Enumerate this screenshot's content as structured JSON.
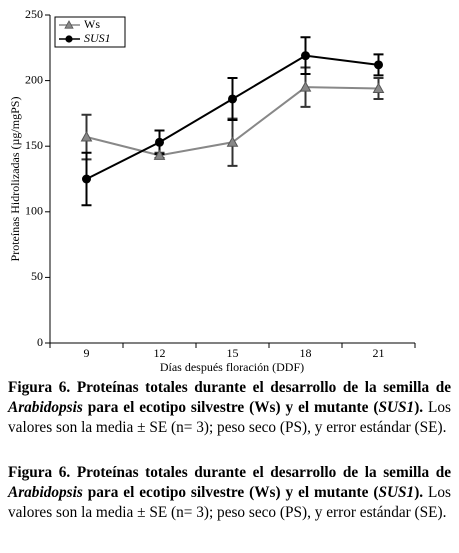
{
  "chart_data": {
    "type": "line",
    "y_label": "Proteínas Hidrolizadas (µg/mgPS)",
    "x_label": "Días después floración (DDF)",
    "categories": [
      "9",
      "12",
      "15",
      "18",
      "21"
    ],
    "series": [
      {
        "name": "Ws",
        "color": "#888888",
        "marker": "triangle",
        "values": [
          157,
          143,
          153,
          195,
          194
        ],
        "errors": [
          17,
          2,
          18,
          15,
          8
        ]
      },
      {
        "name": "SUS1",
        "color": "#000000",
        "marker": "circle",
        "values": [
          125,
          153,
          186,
          219,
          212
        ],
        "errors": [
          20,
          9,
          16,
          14,
          8
        ]
      }
    ],
    "ylim": [
      0,
      250
    ],
    "yticks": [
      0,
      50,
      100,
      150,
      200,
      250
    ],
    "legend": "upper-left"
  },
  "captions": [
    [
      "Figura 6. Proteínas totales durante el desarrollo de la semilla de ",
      "Arabidopsis",
      " para el ecotipo silvestre (Ws) y el mutante (",
      "SUS1",
      ").",
      " Los valores son la media ± SE (n= 3); peso seco (PS), y error estándar (SE)."
    ],
    [
      "Figura 6. Proteínas totales durante el desarrollo de la semilla de ",
      "Arabidopsis",
      " para el ecotipo silvestre (Ws) y el mutante (",
      "SUS1",
      ").",
      " Los valores son la media ± SE (n= 3); peso seco (PS), y error estándar (SE)."
    ]
  ]
}
